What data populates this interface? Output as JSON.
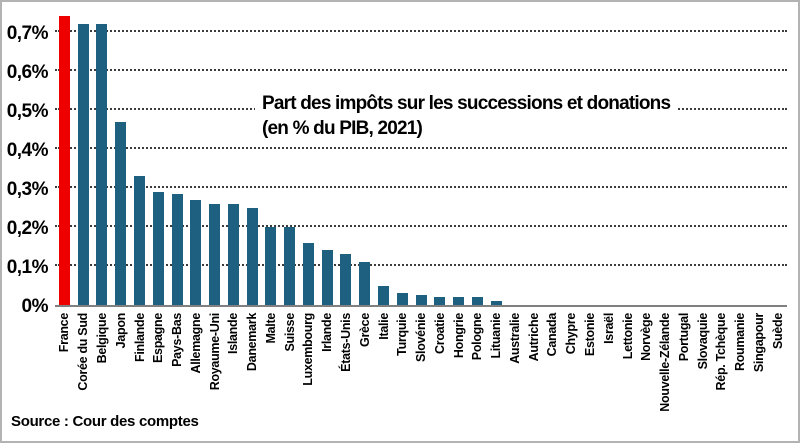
{
  "chart_data": {
    "type": "bar",
    "title": "Part des impôts sur les successions et donations",
    "subtitle": "(en % du PIB, 2021)",
    "ylabel": "% du PIB",
    "ylim": [
      0,
      0.75
    ],
    "grid": "horizontal-dotted",
    "legend": "none",
    "ytick_labels": [
      "0%",
      "0,1%",
      "0,2%",
      "0,3%",
      "0,4%",
      "0,5%",
      "0,6%",
      "0,7%"
    ],
    "ytick_values": [
      0,
      0.1,
      0.2,
      0.3,
      0.4,
      0.5,
      0.6,
      0.7
    ],
    "categories": [
      "France",
      "Corée du Sud",
      "Belgique",
      "Japon",
      "Finlande",
      "Espagne",
      "Pays-Bas",
      "Allemagne",
      "Royaume-Uni",
      "Islande",
      "Danemark",
      "Malte",
      "Suisse",
      "Luxembourg",
      "Irlande",
      "États-Unis",
      "Grèce",
      "Italie",
      "Turquie",
      "Slovénie",
      "Croatie",
      "Hongrie",
      "Pologne",
      "Lituanie",
      "Australie",
      "Autriche",
      "Canada",
      "Chypre",
      "Estonie",
      "Israël",
      "Lettonie",
      "Norvège",
      "Nouvelle-Zélande",
      "Portugal",
      "Slovaquie",
      "Rép. Tchèque",
      "Roumanie",
      "Singapour",
      "Suède"
    ],
    "values": [
      0.74,
      0.72,
      0.72,
      0.47,
      0.33,
      0.29,
      0.285,
      0.27,
      0.26,
      0.26,
      0.25,
      0.2,
      0.2,
      0.16,
      0.14,
      0.13,
      0.11,
      0.05,
      0.03,
      0.025,
      0.02,
      0.02,
      0.02,
      0.01,
      0,
      0,
      0,
      0,
      0,
      0,
      0,
      0,
      0,
      0,
      0,
      0,
      0,
      0,
      0
    ],
    "bar_color": "#1e607f",
    "highlight": {
      "index": 0,
      "country": "France",
      "color": "#ee0000"
    },
    "axis_color": "#808080",
    "gridline_color": "#3c3c3c"
  },
  "source": {
    "note": "Source : Cour des comptes"
  }
}
